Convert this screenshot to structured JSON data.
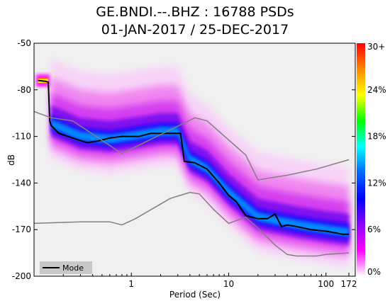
{
  "title_line1": "GE.BNDI.--.BHZ : 16788 PSDs",
  "title_line2": "01-JAN-2017 / 25-DEC-2017",
  "chart_data": {
    "type": "heatmap",
    "title": "GE.BNDI.--.BHZ : 16788 PSDs 01-JAN-2017 / 25-DEC-2017",
    "xlabel": "Period (Sec)",
    "ylabel": "dB",
    "x_scale": "log",
    "xlim": [
      0.1,
      200
    ],
    "ylim": [
      -200,
      -50
    ],
    "x_ticks": [
      {
        "value": 1,
        "label": "1"
      },
      {
        "value": 10,
        "label": "10"
      },
      {
        "value": 100,
        "label": "100"
      },
      {
        "value": 172,
        "label": "172"
      }
    ],
    "y_ticks": [
      {
        "value": -50,
        "label": "-50"
      },
      {
        "value": -80,
        "label": "-80"
      },
      {
        "value": -110,
        "label": "-110"
      },
      {
        "value": -140,
        "label": "-140"
      },
      {
        "value": -170,
        "label": "-170"
      },
      {
        "value": -200,
        "label": "-200"
      }
    ],
    "colorbar": {
      "labels": [
        "30+",
        "24%",
        "18%",
        "12%",
        "6%",
        "0%"
      ],
      "colors": [
        "#ff0000",
        "#ff8800",
        "#ffff00",
        "#00ff00",
        "#00ffff",
        "#0066ff",
        "#0000ff",
        "#8800ff",
        "#ff00ff",
        "#ffffff"
      ]
    },
    "legend": {
      "entries": [
        "Mode"
      ],
      "position": "bottom-left"
    },
    "series": [
      {
        "name": "Mode",
        "color": "#000000",
        "x": [
          0.11,
          0.13,
          0.14,
          0.145,
          0.15,
          0.18,
          0.25,
          0.35,
          0.45,
          0.6,
          0.8,
          1.2,
          1.6,
          2.2,
          3.2,
          3.5,
          4.5,
          6,
          8,
          10,
          12,
          15,
          20,
          25,
          30,
          35,
          40,
          50,
          70,
          100,
          150,
          172
        ],
        "y": [
          -74,
          -74.5,
          -75,
          -100,
          -103,
          -108,
          -111,
          -114,
          -113,
          -111,
          -110,
          -110,
          -108,
          -108,
          -108,
          -126,
          -127,
          -131,
          -140,
          -148,
          -152,
          -161,
          -163,
          -163,
          -160,
          -168,
          -167,
          -168,
          -170,
          -171,
          -173,
          -173
        ]
      },
      {
        "name": "",
        "color": "#808080",
        "x": [
          0.1,
          0.15,
          0.25,
          0.8,
          4.5,
          6,
          15,
          20,
          40,
          80,
          172
        ],
        "y": [
          -94,
          -98,
          -100,
          -121,
          -98,
          -100,
          -122,
          -138,
          -135,
          -131,
          -125
        ]
      },
      {
        "name": "",
        "color": "#808080",
        "x": [
          0.1,
          0.3,
          0.6,
          0.8,
          1.1,
          2.5,
          4,
          5,
          7,
          10,
          15,
          20,
          30,
          40,
          50,
          80,
          100,
          172
        ],
        "y": [
          -166,
          -165,
          -165,
          -167,
          -163,
          -150,
          -146,
          -147,
          -157,
          -166,
          -162,
          -169,
          -180,
          -186,
          -187,
          -187,
          -186,
          -185
        ]
      }
    ],
    "density_band": {
      "x": [
        0.15,
        0.3,
        0.6,
        1,
        2,
        3,
        4,
        6,
        10,
        20,
        50,
        100,
        172
      ],
      "ridge": [
        -102,
        -110,
        -112,
        -110,
        -107,
        -107,
        -125,
        -131,
        -146,
        -162,
        -167,
        -170,
        -172
      ]
    }
  }
}
